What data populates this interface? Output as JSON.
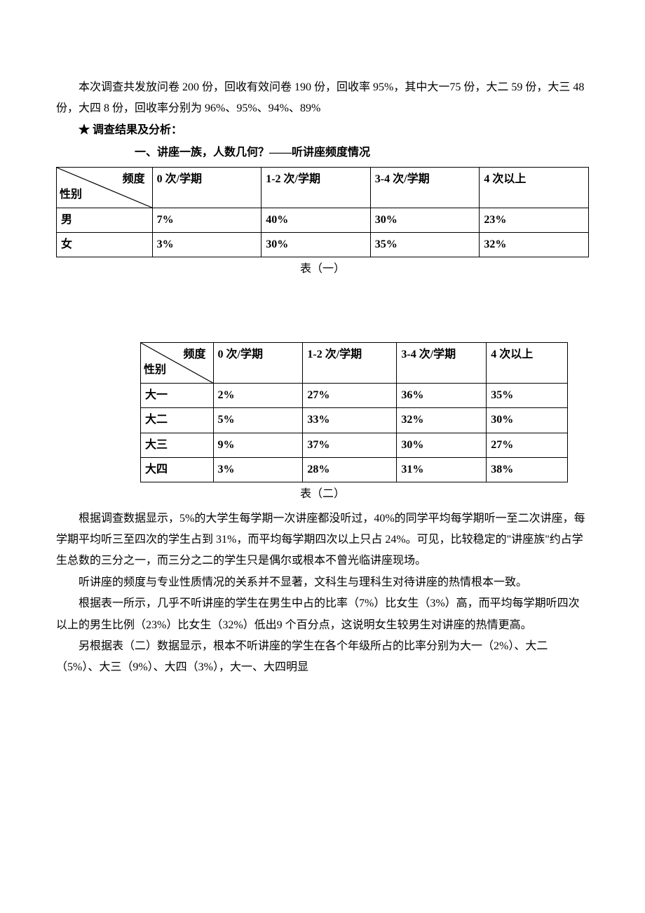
{
  "intro": {
    "p1": "本次调查共发放问卷 200 份，回收有效问卷 190 份，回收率 95%，其中大一75 份，大二 59 份，大三 48 份，大四 8 份，回收率分别为 96%、95%、94%、89%"
  },
  "results_heading": "★ 调查结果及分析：",
  "section1_title": "一、讲座一族，人数几何？——听讲座频度情况",
  "table1": {
    "col_header_label": "频度",
    "row_header_label": "性别",
    "columns": [
      "0 次/学期",
      "1-2 次/学期",
      "3-4 次/学期",
      "4 次以上"
    ],
    "rows": [
      {
        "label": "男",
        "values": [
          "7%",
          "40%",
          "30%",
          "23%"
        ]
      },
      {
        "label": "女",
        "values": [
          "3%",
          "30%",
          "35%",
          "32%"
        ]
      }
    ],
    "caption": "表（一）"
  },
  "table2": {
    "col_header_label": "频度",
    "row_header_label": "性别",
    "columns": [
      "0 次/学期",
      "1-2 次/学期",
      "3-4 次/学期",
      "4 次以上"
    ],
    "rows": [
      {
        "label": "大一",
        "values": [
          "2%",
          "27%",
          "36%",
          "35%"
        ]
      },
      {
        "label": "大二",
        "values": [
          "5%",
          "33%",
          "32%",
          "30%"
        ]
      },
      {
        "label": "大三",
        "values": [
          "9%",
          "37%",
          "30%",
          "27%"
        ]
      },
      {
        "label": "大四",
        "values": [
          "3%",
          "28%",
          "31%",
          "38%"
        ]
      }
    ],
    "caption": "表（二）"
  },
  "body": {
    "p1": "根据调查数据显示，5%的大学生每学期一次讲座都没听过，40%的同学平均每学期听一至二次讲座，每学期平均听三至四次的学生占到 31%，而平均每学期四次以上只占 24%。可见，比较稳定的\"讲座族\"约占学生总数的三分之一，而三分之二的学生只是偶尔或根本不曾光临讲座现场。",
    "p2": "听讲座的频度与专业性质情况的关系并不显著，文科生与理科生对待讲座的热情根本一致。",
    "p3": "根据表一所示，几乎不听讲座的学生在男生中占的比率（7%）比女生（3%）高，而平均每学期听四次以上的男生比例（23%）比女生（32%）低出9 个百分点，这说明女生较男生对讲座的热情更高。",
    "p4": "另根据表（二）数据显示，根本不听讲座的学生在各个年级所占的比率分别为大一（2%）、大二（5%）、大三（9%）、大四（3%），大一、大四明显"
  },
  "style": {
    "col_widths_full": [
      "18%",
      "20.5%",
      "20.5%",
      "20.5%",
      "20.5%"
    ],
    "col_widths_indent": [
      "17%",
      "21%",
      "22%",
      "21%",
      "19%"
    ]
  }
}
